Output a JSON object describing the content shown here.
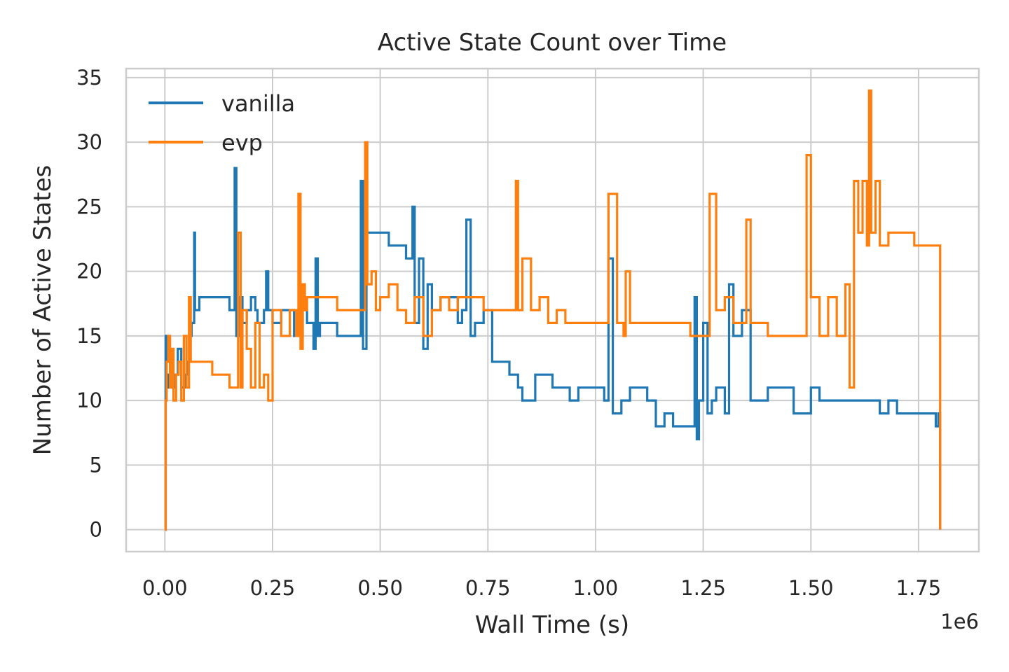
{
  "chart_data": {
    "type": "line",
    "title": "Active State Count over Time",
    "xlabel": "Wall Time (s)",
    "ylabel": "Number of Active States",
    "x_offset_label": "1e6",
    "xlim": [
      -90000,
      1890000
    ],
    "ylim": [
      -1.7,
      35.7
    ],
    "x_ticks": [
      0,
      250000,
      500000,
      750000,
      1000000,
      1250000,
      1500000,
      1750000
    ],
    "x_tick_labels": [
      "0.00",
      "0.25",
      "0.50",
      "0.75",
      "1.00",
      "1.25",
      "1.50",
      "1.75"
    ],
    "y_ticks": [
      0,
      5,
      10,
      15,
      20,
      25,
      30,
      35
    ],
    "y_tick_labels": [
      "0",
      "5",
      "10",
      "15",
      "20",
      "25",
      "30",
      "35"
    ],
    "grid": true,
    "legend_position": "top-left",
    "series": [
      {
        "name": "vanilla",
        "color": "#1f77b4",
        "x": [
          0,
          2000,
          3000,
          8000,
          12000,
          18000,
          25000,
          30000,
          38000,
          45000,
          52000,
          58000,
          62000,
          68000,
          70000,
          80000,
          110000,
          150000,
          158000,
          162000,
          166000,
          175000,
          180000,
          190000,
          200000,
          210000,
          215000,
          230000,
          235000,
          240000,
          250000,
          270000,
          300000,
          320000,
          330000,
          345000,
          350000,
          355000,
          360000,
          380000,
          400000,
          440000,
          455000,
          460000,
          468000,
          475000,
          480000,
          520000,
          540000,
          560000,
          575000,
          580000,
          590000,
          600000,
          610000,
          620000,
          640000,
          660000,
          680000,
          690000,
          700000,
          710000,
          720000,
          740000,
          760000,
          800000,
          815000,
          820000,
          830000,
          860000,
          900000,
          940000,
          960000,
          980000,
          1000000,
          1020000,
          1030000,
          1040000,
          1060000,
          1080000,
          1100000,
          1120000,
          1140000,
          1160000,
          1180000,
          1200000,
          1220000,
          1230000,
          1235000,
          1240000,
          1250000,
          1260000,
          1270000,
          1280000,
          1300000,
          1310000,
          1320000,
          1340000,
          1360000,
          1380000,
          1400000,
          1440000,
          1460000,
          1480000,
          1500000,
          1520000,
          1540000,
          1560000,
          1580000,
          1600000,
          1620000,
          1640000,
          1660000,
          1680000,
          1700000,
          1720000,
          1740000,
          1760000,
          1780000,
          1790000,
          1796000,
          1800000
        ],
        "values": [
          0,
          15,
          11,
          12,
          13,
          11,
          12,
          14,
          11,
          12,
          13,
          15,
          16,
          23,
          17,
          18,
          18,
          17,
          17,
          28,
          15,
          18,
          16,
          17,
          18,
          17,
          16,
          17,
          20,
          17,
          16,
          17,
          15,
          17,
          16,
          14,
          21,
          15,
          16,
          16,
          15,
          15,
          27,
          14,
          23,
          23,
          23,
          22,
          22,
          21,
          25,
          16,
          21,
          14,
          19,
          17,
          18,
          18,
          16,
          17,
          24,
          15,
          16,
          17,
          13,
          12,
          12,
          11,
          10,
          12,
          11,
          10,
          11,
          11,
          11,
          10,
          21,
          9,
          10,
          11,
          11,
          10,
          8,
          9,
          8,
          8,
          8,
          18,
          7,
          10,
          16,
          9,
          10,
          11,
          9,
          19,
          15,
          17,
          10,
          10,
          11,
          11,
          9,
          9,
          11,
          10,
          10,
          10,
          10,
          10,
          10,
          10,
          9,
          10,
          9,
          9,
          9,
          9,
          9,
          8,
          9,
          0
        ]
      },
      {
        "name": "evp",
        "color": "#ff7f0e",
        "x": [
          0,
          2000,
          4000,
          8000,
          12000,
          16000,
          20000,
          26000,
          32000,
          38000,
          44000,
          50000,
          56000,
          60000,
          70000,
          90000,
          110000,
          130000,
          150000,
          165000,
          170000,
          176000,
          180000,
          190000,
          200000,
          210000,
          220000,
          230000,
          240000,
          250000,
          270000,
          290000,
          305000,
          310000,
          315000,
          320000,
          325000,
          330000,
          340000,
          360000,
          380000,
          400000,
          420000,
          440000,
          460000,
          465000,
          470000,
          480000,
          490000,
          500000,
          520000,
          540000,
          560000,
          580000,
          600000,
          620000,
          640000,
          660000,
          680000,
          700000,
          720000,
          740000,
          760000,
          780000,
          800000,
          815000,
          820000,
          830000,
          850000,
          870000,
          890000,
          910000,
          930000,
          950000,
          970000,
          990000,
          1010000,
          1030000,
          1050000,
          1065000,
          1070000,
          1080000,
          1100000,
          1120000,
          1140000,
          1160000,
          1180000,
          1200000,
          1220000,
          1240000,
          1260000,
          1265000,
          1280000,
          1300000,
          1320000,
          1340000,
          1350000,
          1360000,
          1380000,
          1400000,
          1420000,
          1450000,
          1480000,
          1490000,
          1500000,
          1520000,
          1540000,
          1560000,
          1580000,
          1590000,
          1600000,
          1610000,
          1620000,
          1630000,
          1635000,
          1640000,
          1650000,
          1660000,
          1680000,
          1700000,
          1720000,
          1740000,
          1760000,
          1780000,
          1796000,
          1800000
        ],
        "values": [
          0,
          10,
          13,
          15,
          11,
          14,
          10,
          12,
          13,
          10,
          15,
          11,
          18,
          13,
          13,
          13,
          12,
          12,
          11,
          11,
          23,
          11,
          17,
          14,
          11,
          16,
          11,
          12,
          10,
          17,
          15,
          17,
          15,
          26,
          14,
          19,
          17,
          18,
          18,
          18,
          18,
          17,
          17,
          17,
          17,
          30,
          19,
          20,
          17,
          18,
          19,
          17,
          16,
          18,
          15,
          17,
          18,
          17,
          18,
          18,
          18,
          17,
          17,
          17,
          17,
          27,
          17,
          21,
          17,
          18,
          16,
          17,
          16,
          16,
          16,
          16,
          16,
          26,
          16,
          15,
          20,
          16,
          16,
          16,
          16,
          16,
          16,
          16,
          15,
          15,
          15,
          26,
          17,
          18,
          16,
          16,
          24,
          16,
          16,
          15,
          15,
          15,
          15,
          29,
          18,
          15,
          18,
          15,
          19,
          11,
          27,
          23,
          27,
          22,
          34,
          23,
          27,
          22,
          23,
          23,
          23,
          22,
          22,
          22,
          22,
          0
        ]
      }
    ]
  }
}
